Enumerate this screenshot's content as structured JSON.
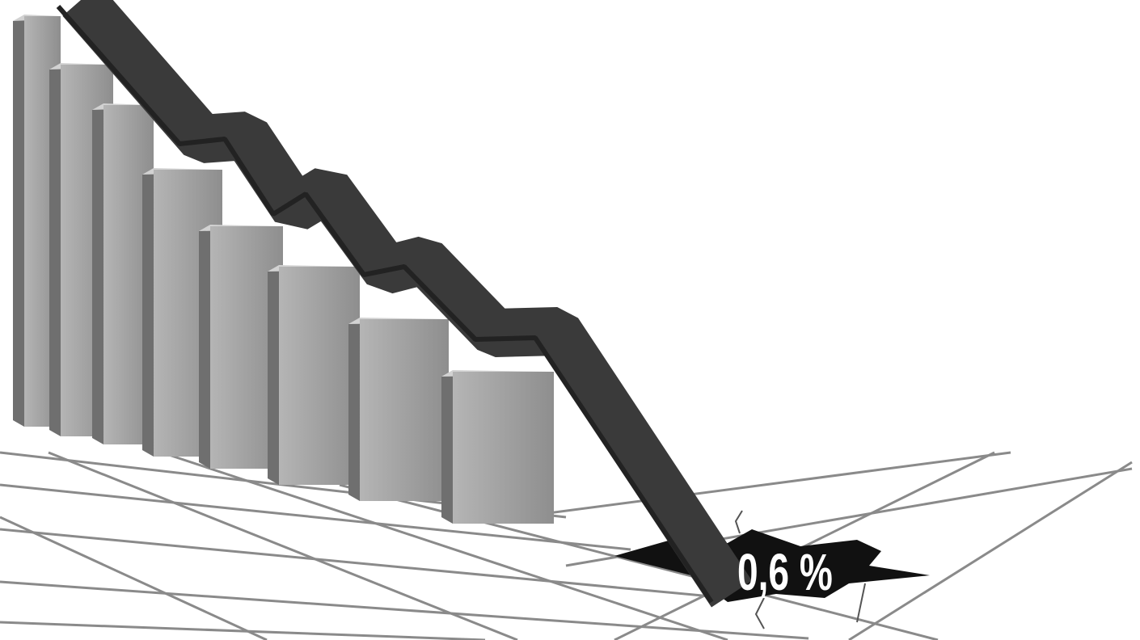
{
  "label": "0,6 %"
}
